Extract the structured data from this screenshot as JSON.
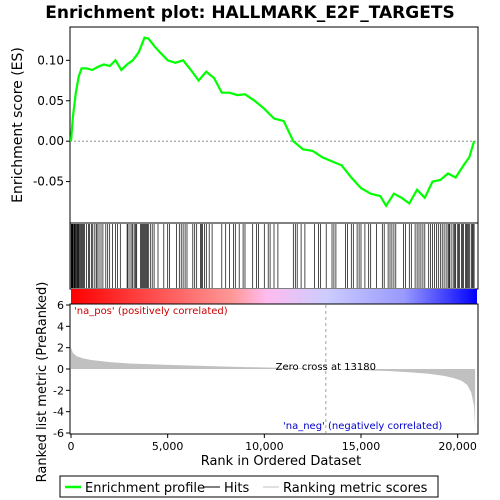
{
  "chart_data": {
    "type": "line",
    "title": "Enrichment plot: HALLMARK_E2F_TARGETS",
    "es_panel": {
      "ylabel": "Enrichment score (ES)",
      "ylim": [
        -0.1,
        0.14
      ],
      "yticks": [
        0.1,
        0.05,
        0.0,
        -0.05
      ],
      "ytick_labels": [
        "0.10",
        "0.05",
        "0.00",
        "-0.05"
      ],
      "series": {
        "color": "#00ff00",
        "x": [
          0,
          100,
          250,
          400,
          550,
          800,
          1100,
          1400,
          1700,
          2000,
          2300,
          2600,
          2900,
          3200,
          3500,
          3800,
          4000,
          4300,
          4600,
          5000,
          5400,
          5800,
          6200,
          6600,
          7000,
          7400,
          7800,
          8200,
          8600,
          9000,
          9500,
          10000,
          10500,
          11000,
          11500,
          12000,
          12500,
          13000,
          13500,
          14000,
          14500,
          15000,
          15500,
          16000,
          16300,
          16700,
          17100,
          17500,
          17900,
          18300,
          18700,
          19100,
          19500,
          19900,
          20300,
          20600,
          20850
        ],
        "y": [
          0.0,
          0.03,
          0.06,
          0.08,
          0.09,
          0.09,
          0.088,
          0.092,
          0.095,
          0.093,
          0.1,
          0.088,
          0.095,
          0.1,
          0.11,
          0.128,
          0.127,
          0.118,
          0.11,
          0.1,
          0.097,
          0.1,
          0.088,
          0.075,
          0.086,
          0.078,
          0.06,
          0.06,
          0.057,
          0.058,
          0.05,
          0.04,
          0.028,
          0.025,
          0.0,
          -0.01,
          -0.012,
          -0.02,
          -0.025,
          -0.03,
          -0.045,
          -0.058,
          -0.065,
          -0.068,
          -0.08,
          -0.065,
          -0.07,
          -0.077,
          -0.06,
          -0.07,
          -0.05,
          -0.048,
          -0.04,
          -0.045,
          -0.03,
          -0.02,
          0.0
        ]
      }
    },
    "hits_panel": {
      "hit_positions": [
        10,
        30,
        60,
        90,
        130,
        170,
        200,
        240,
        280,
        320,
        360,
        400,
        450,
        500,
        550,
        600,
        650,
        700,
        800,
        900,
        950,
        1050,
        1100,
        1200,
        1300,
        1350,
        1450,
        1550,
        1650,
        1800,
        1900,
        2000,
        2150,
        2300,
        2400,
        2550,
        2900,
        2950,
        3050,
        3150,
        3200,
        3300,
        3350,
        3400,
        3600,
        3650,
        3700,
        3750,
        3800,
        3850,
        3900,
        3950,
        4000,
        4100,
        4200,
        4300,
        4500,
        4800,
        5000,
        5100,
        5450,
        5600,
        5700,
        5800,
        5900,
        6000,
        6300,
        6400,
        6500,
        6700,
        6750,
        6800,
        6900,
        7000,
        7150,
        7300,
        7800,
        8000,
        8200,
        8400,
        8500,
        8700,
        8900,
        9000,
        9400,
        9600,
        9700,
        10000,
        10200,
        10300,
        10500,
        10700,
        11500,
        11600,
        11700,
        11900,
        12100,
        12600,
        12800,
        12900,
        13200,
        13500,
        13600,
        13700,
        14200,
        14300,
        14500,
        14600,
        14800,
        14900,
        15000,
        15200,
        15400,
        15500,
        15800,
        16100,
        16200,
        16400,
        16500,
        16600,
        16700,
        16800,
        17200,
        17300,
        17500,
        17600,
        17800,
        17900,
        18000,
        18100,
        18200,
        18300,
        18500,
        18600,
        18700,
        18800,
        18900,
        19000,
        19100,
        19200,
        19300,
        19400,
        19500,
        19550,
        19600,
        19700,
        19800,
        19850,
        19900,
        20000,
        20050,
        20100,
        20200,
        20250,
        20300,
        20400,
        20450,
        20500,
        20550,
        20600,
        20700,
        20750,
        20800,
        20850
      ]
    },
    "gradient_panel": {
      "pos_label": "'na_pos' (positively correlated)",
      "neg_label": "'na_neg' (negatively correlated)"
    },
    "metric_panel": {
      "ylabel": "Ranked list metric (PreRanked)",
      "ylim": [
        -6,
        6
      ],
      "yticks": [
        6,
        4,
        2,
        0,
        -2,
        -4,
        -6
      ],
      "zero_cross_label": "Zero cross at 13180",
      "zero_cross": 13180,
      "x": [
        0,
        100,
        300,
        600,
        1000,
        2000,
        3000,
        5000,
        7000,
        9000,
        11000,
        13180,
        15000,
        16500,
        17500,
        18500,
        19300,
        19800,
        20200,
        20500,
        20700,
        20850,
        20900
      ],
      "y": [
        2.0,
        1.5,
        1.2,
        1.0,
        0.85,
        0.65,
        0.52,
        0.38,
        0.28,
        0.18,
        0.1,
        0.0,
        -0.1,
        -0.2,
        -0.3,
        -0.45,
        -0.65,
        -0.85,
        -1.1,
        -1.5,
        -2.2,
        -3.5,
        -5.5
      ]
    },
    "xaxis": {
      "xlabel": "Rank in Ordered Dataset",
      "xlim": [
        0,
        21000
      ],
      "xticks": [
        0,
        5000,
        10000,
        15000,
        20000
      ],
      "xtick_labels": [
        "0",
        "5,000",
        "10,000",
        "15,000",
        "20,000"
      ]
    },
    "legend": {
      "placement": "bottom",
      "items": [
        {
          "label": "Enrichment profile",
          "color": "#00ff00"
        },
        {
          "label": "Hits",
          "color": "#000000"
        },
        {
          "label": "Ranking metric scores",
          "color": "#c0c0c0"
        }
      ]
    }
  }
}
